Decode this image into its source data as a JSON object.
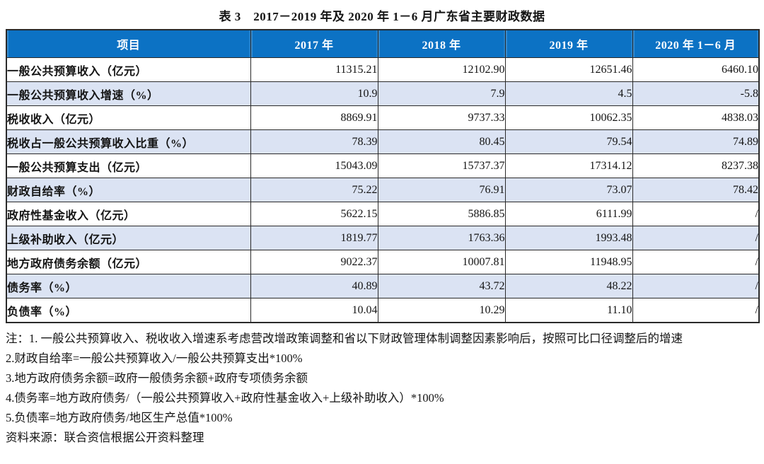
{
  "title": "表 3　2017－2019 年及 2020 年 1－6 月广东省主要财政数据",
  "table": {
    "columns": [
      "项目",
      "2017 年",
      "2018 年",
      "2019 年",
      "2020 年 1－6 月"
    ],
    "rows": [
      {
        "label": "一般公共预算收入（亿元）",
        "values": [
          "11315.21",
          "12102.90",
          "12651.46",
          "6460.10"
        ]
      },
      {
        "label": "一般公共预算收入增速（%）",
        "values": [
          "10.9",
          "7.9",
          "4.5",
          "-5.8"
        ]
      },
      {
        "label": "税收收入（亿元）",
        "values": [
          "8869.91",
          "9737.33",
          "10062.35",
          "4838.03"
        ]
      },
      {
        "label": "税收占一般公共预算收入比重（%）",
        "values": [
          "78.39",
          "80.45",
          "79.54",
          "74.89"
        ]
      },
      {
        "label": "一般公共预算支出（亿元）",
        "values": [
          "15043.09",
          "15737.37",
          "17314.12",
          "8237.38"
        ]
      },
      {
        "label": "财政自给率（%）",
        "values": [
          "75.22",
          "76.91",
          "73.07",
          "78.42"
        ]
      },
      {
        "label": "政府性基金收入（亿元）",
        "values": [
          "5622.15",
          "5886.85",
          "6111.99",
          "/"
        ]
      },
      {
        "label": "上级补助收入（亿元）",
        "values": [
          "1819.77",
          "1763.36",
          "1993.48",
          "/"
        ]
      },
      {
        "label": "地方政府债务余额（亿元）",
        "values": [
          "9022.37",
          "10007.81",
          "11948.95",
          "/"
        ]
      },
      {
        "label": "债务率（%）",
        "values": [
          "40.89",
          "43.72",
          "48.22",
          "/"
        ]
      },
      {
        "label": "负债率（%）",
        "values": [
          "10.04",
          "10.29",
          "11.10",
          "/"
        ]
      }
    ]
  },
  "notes": [
    "注：1. 一般公共预算收入、税收收入增速系考虑营改增政策调整和省以下财政管理体制调整因素影响后，按照可比口径调整后的增速",
    "2.财政自给率=一般公共预算收入/一般公共预算支出*100%",
    "3.地方政府债务余额=政府一般债务余额+政府专项债务余额",
    "4.债务率=地方政府债务/（一般公共预算收入+政府性基金收入+上级补助收入）*100%",
    "5.负债率=地方政府债务/地区生产总值*100%",
    "资料来源：联合资信根据公开资料整理"
  ],
  "colors": {
    "header_bg": "#0c72c4",
    "row_alt_bg": "#dbe3f3",
    "border": "#2a2a2a",
    "header_text": "#ffffff",
    "body_text": "#141414"
  }
}
